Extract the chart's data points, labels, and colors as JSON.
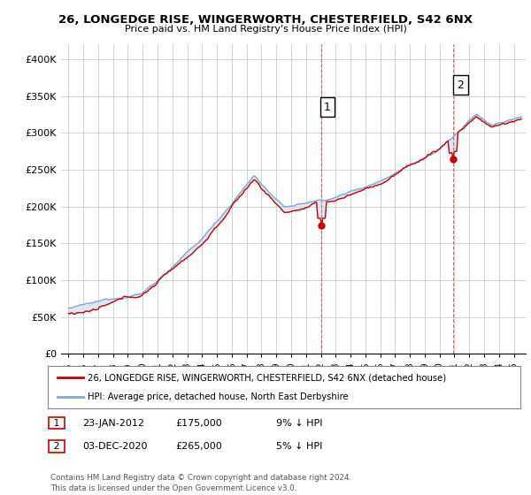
{
  "title_line1": "26, LONGEDGE RISE, WINGERWORTH, CHESTERFIELD, S42 6NX",
  "title_line2": "Price paid vs. HM Land Registry's House Price Index (HPI)",
  "ylabel_ticks": [
    "£0",
    "£50K",
    "£100K",
    "£150K",
    "£200K",
    "£250K",
    "£300K",
    "£350K",
    "£400K"
  ],
  "ytick_values": [
    0,
    50000,
    100000,
    150000,
    200000,
    250000,
    300000,
    350000,
    400000
  ],
  "ylim": [
    0,
    420000
  ],
  "xlim_start": 1994.5,
  "xlim_end": 2025.8,
  "hpi_color": "#7aadd4",
  "price_color": "#cc0000",
  "fill_color": "#cce0f0",
  "purchase1_x": 2012.07,
  "purchase1_y": 175000,
  "purchase1_label": "1",
  "purchase2_x": 2020.92,
  "purchase2_y": 265000,
  "purchase2_label": "2",
  "legend_label1": "26, LONGEDGE RISE, WINGERWORTH, CHESTERFIELD, S42 6NX (detached house)",
  "legend_label2": "HPI: Average price, detached house, North East Derbyshire",
  "annotation1_date": "23-JAN-2012",
  "annotation1_price": "£175,000",
  "annotation1_pct": "9% ↓ HPI",
  "annotation2_date": "03-DEC-2020",
  "annotation2_price": "£265,000",
  "annotation2_pct": "5% ↓ HPI",
  "footer": "Contains HM Land Registry data © Crown copyright and database right 2024.\nThis data is licensed under the Open Government Licence v3.0.",
  "background_color": "#ffffff",
  "grid_color": "#cccccc"
}
